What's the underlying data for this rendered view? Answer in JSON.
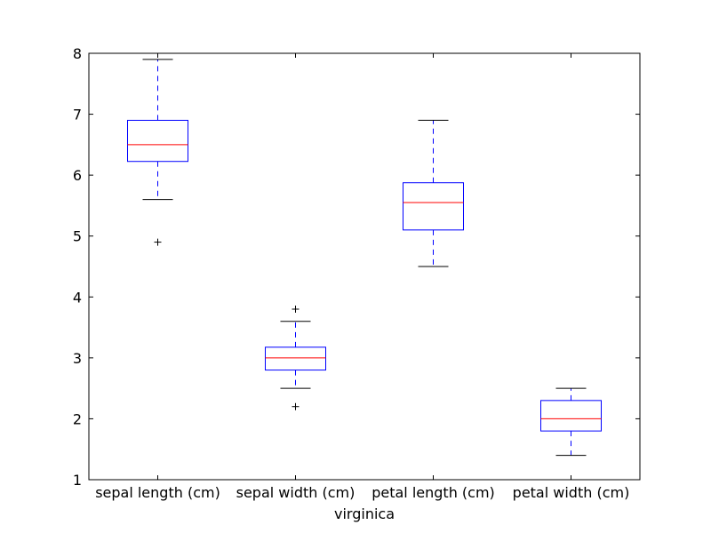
{
  "chart_data": {
    "type": "box",
    "title": "",
    "xlabel": "virginica",
    "ylabel": "",
    "ylim": [
      1,
      8
    ],
    "yticks": [
      1,
      2,
      3,
      4,
      5,
      6,
      7,
      8
    ],
    "grid": false,
    "legend": "none",
    "categories": [
      "sepal length (cm)",
      "sepal width (cm)",
      "petal length (cm)",
      "petal width (cm)"
    ],
    "boxes": [
      {
        "whisker_low": 5.6,
        "q1": 6.225,
        "median": 6.5,
        "q3": 6.9,
        "whisker_high": 7.9,
        "outliers": [
          4.9
        ]
      },
      {
        "whisker_low": 2.5,
        "q1": 2.8,
        "median": 3.0,
        "q3": 3.175,
        "whisker_high": 3.6,
        "outliers": [
          3.8,
          2.2
        ]
      },
      {
        "whisker_low": 4.5,
        "q1": 5.1,
        "median": 5.55,
        "q3": 5.875,
        "whisker_high": 6.9,
        "outliers": []
      },
      {
        "whisker_low": 1.4,
        "q1": 1.8,
        "median": 2.0,
        "q3": 2.3,
        "whisker_high": 2.5,
        "outliers": []
      }
    ],
    "colors": {
      "box": "#0000ff",
      "median": "#ff0000",
      "whisker": "#0000ff",
      "cap": "#000000",
      "outlier": "#000000",
      "axes": "#000000"
    }
  }
}
